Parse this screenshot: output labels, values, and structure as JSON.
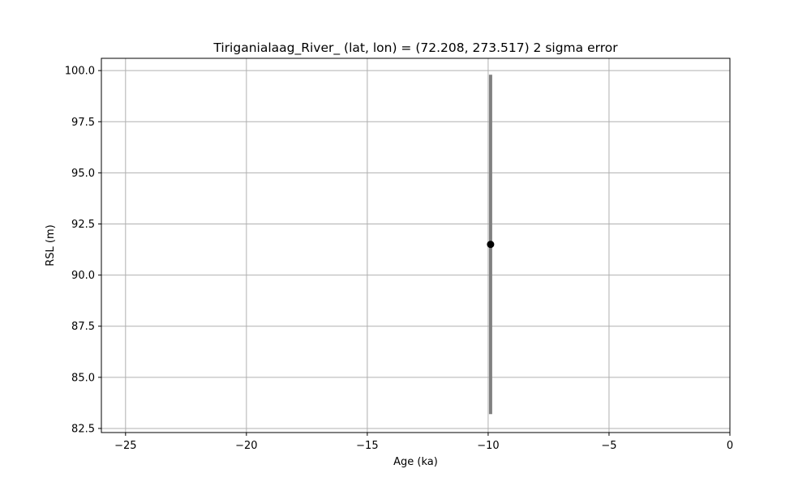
{
  "chart_data": {
    "type": "scatter",
    "title": "Tiriganialaag_River_ (lat, lon) = (72.208, 273.517)  2 sigma error",
    "xlabel": "Age (ka)",
    "ylabel": "RSL (m)",
    "xlim": [
      -26,
      0
    ],
    "ylim": [
      82.3,
      100.6
    ],
    "xticks": [
      -25,
      -20,
      -15,
      -10,
      -5,
      0
    ],
    "xtick_labels": [
      "−25",
      "−20",
      "−15",
      "−10",
      "−5",
      "0"
    ],
    "yticks": [
      82.5,
      85.0,
      87.5,
      90.0,
      92.5,
      95.0,
      97.5,
      100.0
    ],
    "ytick_labels": [
      "82.5",
      "85.0",
      "87.5",
      "90.0",
      "92.5",
      "95.0",
      "97.5",
      "100.0"
    ],
    "grid": true,
    "points": [
      {
        "x": -9.9,
        "y": 91.5,
        "y_err_low": 83.2,
        "y_err_high": 99.8
      }
    ],
    "colors": {
      "point": "#000000",
      "error_bar": "#808080",
      "grid": "#b0b0b0",
      "axes": "#000000"
    }
  }
}
